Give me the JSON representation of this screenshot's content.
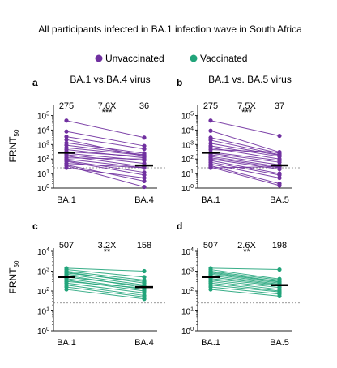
{
  "figure": {
    "title": "All participants  infected  in  BA.1 infection  wave  in  South Africa",
    "legend": [
      {
        "label": "Unvaccinated",
        "color": "#7030a0"
      },
      {
        "label": "Vaccinated",
        "color": "#21a47a"
      }
    ],
    "ylabel_main": "FRNT",
    "ylabel_sub": "50"
  },
  "chart_data": [
    {
      "type": "line",
      "panel": "a",
      "title": "BA.1 vs.BA.4 virus",
      "color": "#7030a0",
      "log_scale": true,
      "ylim": [
        1,
        300000
      ],
      "y_ticks": [
        1,
        10,
        100,
        1000,
        10000,
        100000
      ],
      "categories": [
        "BA.1",
        "BA.4"
      ],
      "annot_left": "275",
      "annot_mid": "7.6X",
      "annot_sig": "***",
      "annot_right": "36",
      "geo_means": [
        275,
        36
      ],
      "threshold": 25,
      "pairs": [
        [
          45000,
          3000
        ],
        [
          8000,
          800
        ],
        [
          3500,
          500
        ],
        [
          2200,
          150
        ],
        [
          1300,
          250
        ],
        [
          900,
          200
        ],
        [
          600,
          180
        ],
        [
          450,
          120
        ],
        [
          320,
          150
        ],
        [
          250,
          80
        ],
        [
          200,
          50
        ],
        [
          160,
          30
        ],
        [
          120,
          100
        ],
        [
          100,
          25
        ],
        [
          80,
          12
        ],
        [
          70,
          8
        ],
        [
          50,
          25
        ],
        [
          40,
          3
        ],
        [
          35,
          1.2
        ],
        [
          25,
          5
        ]
      ]
    },
    {
      "type": "line",
      "panel": "b",
      "title": "BA.1 vs. BA.5 virus",
      "color": "#7030a0",
      "log_scale": true,
      "ylim": [
        1,
        300000
      ],
      "y_ticks": [
        1,
        10,
        100,
        1000,
        10000,
        100000
      ],
      "categories": [
        "BA.1",
        "BA.5"
      ],
      "annot_left": "275",
      "annot_mid": "7.5X",
      "annot_sig": "***",
      "annot_right": "37",
      "geo_means": [
        275,
        37
      ],
      "threshold": 25,
      "pairs": [
        [
          45000,
          4000
        ],
        [
          9000,
          300
        ],
        [
          3000,
          250
        ],
        [
          2000,
          200
        ],
        [
          1200,
          180
        ],
        [
          800,
          150
        ],
        [
          600,
          100
        ],
        [
          450,
          300
        ],
        [
          300,
          80
        ],
        [
          250,
          60
        ],
        [
          200,
          40
        ],
        [
          150,
          30
        ],
        [
          120,
          25
        ],
        [
          100,
          20
        ],
        [
          80,
          10
        ],
        [
          60,
          8
        ],
        [
          45,
          5
        ],
        [
          35,
          2
        ],
        [
          28,
          1.5
        ],
        [
          25,
          30
        ]
      ]
    },
    {
      "type": "line",
      "panel": "c",
      "title": "",
      "color": "#21a47a",
      "log_scale": true,
      "ylim": [
        1,
        10000
      ],
      "y_ticks": [
        1,
        10,
        100,
        1000,
        10000
      ],
      "categories": [
        "BA.1",
        "BA.4"
      ],
      "annot_left": "507",
      "annot_mid": "3.2X",
      "annot_sig": "**",
      "annot_right": "158",
      "geo_means": [
        507,
        158
      ],
      "threshold": 25,
      "pairs": [
        [
          1400,
          1000
        ],
        [
          1200,
          500
        ],
        [
          1000,
          350
        ],
        [
          900,
          250
        ],
        [
          800,
          300
        ],
        [
          700,
          200
        ],
        [
          600,
          150
        ],
        [
          500,
          180
        ],
        [
          420,
          120
        ],
        [
          350,
          100
        ],
        [
          300,
          140
        ],
        [
          250,
          80
        ],
        [
          200,
          60
        ],
        [
          160,
          50
        ],
        [
          120,
          40
        ]
      ]
    },
    {
      "type": "line",
      "panel": "d",
      "title": "",
      "color": "#21a47a",
      "log_scale": true,
      "ylim": [
        1,
        10000
      ],
      "y_ticks": [
        1,
        10,
        100,
        1000,
        10000
      ],
      "categories": [
        "BA.1",
        "BA.5"
      ],
      "annot_left": "507",
      "annot_mid": "2.6X",
      "annot_sig": "**",
      "annot_right": "198",
      "geo_means": [
        507,
        198
      ],
      "threshold": 25,
      "pairs": [
        [
          1400,
          1200
        ],
        [
          1200,
          400
        ],
        [
          1000,
          350
        ],
        [
          900,
          300
        ],
        [
          800,
          280
        ],
        [
          700,
          250
        ],
        [
          600,
          220
        ],
        [
          500,
          200
        ],
        [
          420,
          180
        ],
        [
          350,
          150
        ],
        [
          300,
          120
        ],
        [
          250,
          100
        ],
        [
          200,
          90
        ],
        [
          160,
          70
        ],
        [
          120,
          55
        ]
      ]
    }
  ]
}
